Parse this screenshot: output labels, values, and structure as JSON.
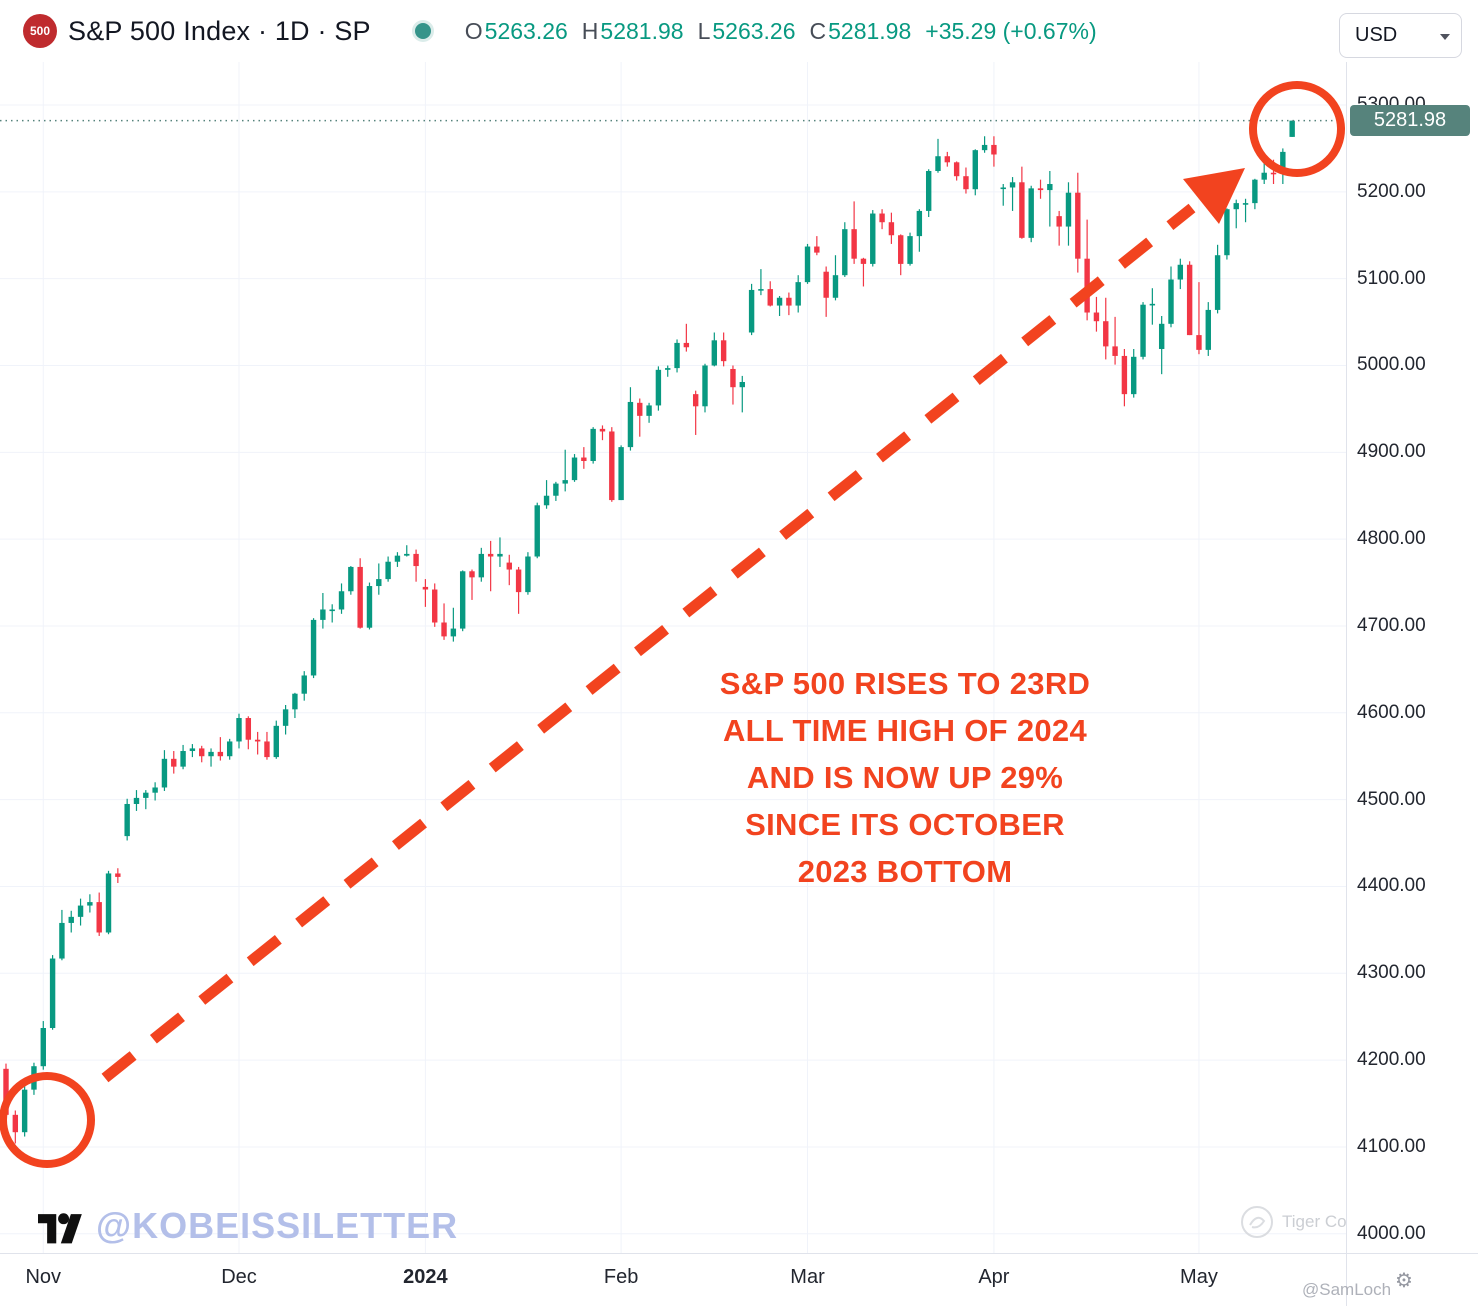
{
  "header": {
    "logo_text": "500",
    "symbol_title": "S&P 500 Index · 1D · SP",
    "ohlc": {
      "o_label": "O",
      "o": "5263.26",
      "h_label": "H",
      "h": "5281.98",
      "l_label": "L",
      "l": "5263.26",
      "c_label": "C",
      "c": "5281.98",
      "change": "+35.29 (+0.67%)"
    },
    "currency_selector": "USD"
  },
  "price_axis": {
    "last_price_label": "5281.98"
  },
  "annotations": {
    "callout_text": "S&P 500 RISES TO 23RD\nALL TIME HIGH OF 2024\nAND IS NOW UP 29%\nSINCE ITS OCTOBER\n2023 BOTTOM"
  },
  "watermarks": {
    "handle": "@KOBEISSILETTER",
    "community": "Tiger Community",
    "corner_handle": "@SamLoch"
  },
  "colors": {
    "up": "#089981",
    "down": "#f23645",
    "badge": "#56837c",
    "annotation": "#f2431f",
    "grid": "#f0f3fa",
    "axis_text": "#22262f"
  },
  "chart_data": {
    "type": "candlestick",
    "title": "S&P 500 Index",
    "timeframe": "1D",
    "exchange": "SP",
    "currency": "USD",
    "last_price": 5281.98,
    "last_ohlc": {
      "open": 5263.26,
      "high": 5281.98,
      "low": 5263.26,
      "close": 5281.98,
      "change": 35.29,
      "change_pct": 0.67
    },
    "y_ticks": [
      4000,
      4100,
      4200,
      4300,
      4400,
      4500,
      4600,
      4700,
      4800,
      4900,
      5000,
      5100,
      5200,
      5300
    ],
    "y_range_visible": [
      3981,
      5350
    ],
    "x_ticks": [
      {
        "label": "Nov",
        "index": 4
      },
      {
        "label": "Dec",
        "index": 25
      },
      {
        "label": "2024",
        "index": 45,
        "bold": true
      },
      {
        "label": "Feb",
        "index": 66
      },
      {
        "label": "Mar",
        "index": 86
      },
      {
        "label": "Apr",
        "index": 106
      },
      {
        "label": "May",
        "index": 128
      }
    ],
    "legend": "O H L C last-change shown in header",
    "candles": [
      [
        4190,
        4196,
        4128,
        4137
      ],
      [
        4137,
        4142,
        4104,
        4117
      ],
      [
        4117,
        4172,
        4112,
        4166
      ],
      [
        4166,
        4197,
        4160,
        4193
      ],
      [
        4193,
        4245,
        4189,
        4237
      ],
      [
        4237,
        4321,
        4235,
        4317
      ],
      [
        4317,
        4373,
        4315,
        4358
      ],
      [
        4358,
        4372,
        4347,
        4365
      ],
      [
        4365,
        4386,
        4355,
        4378
      ],
      [
        4378,
        4391,
        4370,
        4382
      ],
      [
        4382,
        4393,
        4343,
        4347
      ],
      [
        4347,
        4418,
        4345,
        4415
      ],
      [
        4415,
        4421,
        4404,
        4411
      ],
      [
        4458,
        4501,
        4453,
        4495
      ],
      [
        4495,
        4511,
        4487,
        4502
      ],
      [
        4502,
        4511,
        4489,
        4508
      ],
      [
        4508,
        4520,
        4499,
        4514
      ],
      [
        4514,
        4557,
        4510,
        4547
      ],
      [
        4547,
        4556,
        4530,
        4538
      ],
      [
        4538,
        4563,
        4535,
        4556
      ],
      [
        4556,
        4564,
        4549,
        4559
      ],
      [
        4559,
        4562,
        4543,
        4550
      ],
      [
        4550,
        4559,
        4538,
        4555
      ],
      [
        4555,
        4572,
        4545,
        4550
      ],
      [
        4550,
        4570,
        4546,
        4567
      ],
      [
        4567,
        4599,
        4559,
        4594
      ],
      [
        4594,
        4596,
        4558,
        4569
      ],
      [
        4569,
        4578,
        4552,
        4567
      ],
      [
        4567,
        4578,
        4546,
        4549
      ],
      [
        4549,
        4591,
        4547,
        4585
      ],
      [
        4585,
        4609,
        4575,
        4604
      ],
      [
        4604,
        4623,
        4594,
        4622
      ],
      [
        4622,
        4648,
        4614,
        4643
      ],
      [
        4643,
        4709,
        4640,
        4707
      ],
      [
        4707,
        4738,
        4697,
        4719
      ],
      [
        4719,
        4725,
        4704,
        4719
      ],
      [
        4719,
        4749,
        4714,
        4740
      ],
      [
        4740,
        4769,
        4736,
        4768
      ],
      [
        4768,
        4778,
        4697,
        4698
      ],
      [
        4698,
        4750,
        4696,
        4746
      ],
      [
        4746,
        4772,
        4736,
        4754
      ],
      [
        4754,
        4780,
        4751,
        4774
      ],
      [
        4774,
        4785,
        4768,
        4781
      ],
      [
        4781,
        4793,
        4780,
        4783
      ],
      [
        4783,
        4788,
        4751,
        4769
      ],
      [
        4745,
        4754,
        4722,
        4742
      ],
      [
        4742,
        4749,
        4699,
        4704
      ],
      [
        4704,
        4726,
        4684,
        4688
      ],
      [
        4688,
        4721,
        4682,
        4697
      ],
      [
        4697,
        4764,
        4694,
        4763
      ],
      [
        4763,
        4765,
        4730,
        4756
      ],
      [
        4756,
        4790,
        4751,
        4783
      ],
      [
        4783,
        4798,
        4740,
        4780
      ],
      [
        4780,
        4802,
        4768,
        4783
      ],
      [
        4773,
        4782,
        4747,
        4765
      ],
      [
        4765,
        4768,
        4714,
        4739
      ],
      [
        4739,
        4785,
        4736,
        4780
      ],
      [
        4780,
        4842,
        4778,
        4839
      ],
      [
        4839,
        4868,
        4835,
        4850
      ],
      [
        4850,
        4866,
        4844,
        4864
      ],
      [
        4864,
        4903,
        4855,
        4868
      ],
      [
        4868,
        4898,
        4866,
        4894
      ],
      [
        4894,
        4906,
        4881,
        4890
      ],
      [
        4890,
        4929,
        4887,
        4927
      ],
      [
        4927,
        4931,
        4914,
        4924
      ],
      [
        4924,
        4929,
        4843,
        4845
      ],
      [
        4845,
        4908,
        4845,
        4906
      ],
      [
        4906,
        4975,
        4902,
        4958
      ],
      [
        4957,
        4962,
        4918,
        4942
      ],
      [
        4942,
        4957,
        4934,
        4954
      ],
      [
        4954,
        4999,
        4948,
        4995
      ],
      [
        4995,
        5000,
        4987,
        4997
      ],
      [
        4997,
        5030,
        4992,
        5026
      ],
      [
        5026,
        5048,
        5016,
        5021
      ],
      [
        4967,
        4971,
        4920,
        4953
      ],
      [
        4953,
        5002,
        4946,
        5000
      ],
      [
        5000,
        5038,
        4999,
        5029
      ],
      [
        5029,
        5038,
        4999,
        5005
      ],
      [
        4996,
        5000,
        4955,
        4975
      ],
      [
        4975,
        4988,
        4946,
        4981
      ],
      [
        5038,
        5094,
        5035,
        5087
      ],
      [
        5087,
        5111,
        5081,
        5088
      ],
      [
        5088,
        5097,
        5068,
        5069
      ],
      [
        5069,
        5080,
        5057,
        5078
      ],
      [
        5078,
        5084,
        5058,
        5069
      ],
      [
        5069,
        5104,
        5061,
        5096
      ],
      [
        5096,
        5140,
        5094,
        5137
      ],
      [
        5137,
        5149,
        5127,
        5130
      ],
      [
        5108,
        5114,
        5056,
        5078
      ],
      [
        5078,
        5127,
        5075,
        5104
      ],
      [
        5104,
        5165,
        5102,
        5157
      ],
      [
        5157,
        5189,
        5117,
        5123
      ],
      [
        5123,
        5124,
        5091,
        5117
      ],
      [
        5117,
        5179,
        5114,
        5175
      ],
      [
        5175,
        5180,
        5157,
        5165
      ],
      [
        5165,
        5176,
        5140,
        5150
      ],
      [
        5150,
        5151,
        5104,
        5117
      ],
      [
        5117,
        5153,
        5115,
        5149
      ],
      [
        5149,
        5180,
        5131,
        5178
      ],
      [
        5178,
        5226,
        5171,
        5224
      ],
      [
        5224,
        5261,
        5222,
        5241
      ],
      [
        5241,
        5246,
        5229,
        5234
      ],
      [
        5234,
        5235,
        5213,
        5218
      ],
      [
        5218,
        5228,
        5198,
        5203
      ],
      [
        5203,
        5249,
        5196,
        5248
      ],
      [
        5248,
        5264,
        5245,
        5254
      ],
      [
        5254,
        5264,
        5229,
        5243
      ],
      [
        5204,
        5209,
        5184,
        5205
      ],
      [
        5205,
        5217,
        5178,
        5211
      ],
      [
        5211,
        5229,
        5146,
        5147
      ],
      [
        5147,
        5207,
        5142,
        5204
      ],
      [
        5204,
        5214,
        5192,
        5202
      ],
      [
        5202,
        5224,
        5160,
        5209
      ],
      [
        5172,
        5178,
        5138,
        5160
      ],
      [
        5160,
        5211,
        5138,
        5199
      ],
      [
        5199,
        5222,
        5107,
        5123
      ],
      [
        5123,
        5168,
        5052,
        5061
      ],
      [
        5061,
        5079,
        5039,
        5051
      ],
      [
        5051,
        5078,
        5007,
        5022
      ],
      [
        5022,
        5056,
        5001,
        5011
      ],
      [
        5011,
        5019,
        4953,
        4967
      ],
      [
        4967,
        5019,
        4963,
        5010
      ],
      [
        5010,
        5073,
        5007,
        5070
      ],
      [
        5070,
        5089,
        5047,
        5071
      ],
      [
        5019,
        5057,
        4990,
        5048
      ],
      [
        5048,
        5114,
        5044,
        5099
      ],
      [
        5099,
        5123,
        5088,
        5116
      ],
      [
        5116,
        5120,
        5035,
        5035
      ],
      [
        5035,
        5096,
        5013,
        5018
      ],
      [
        5018,
        5073,
        5011,
        5064
      ],
      [
        5064,
        5139,
        5060,
        5127
      ],
      [
        5127,
        5181,
        5122,
        5180
      ],
      [
        5180,
        5191,
        5158,
        5187
      ],
      [
        5187,
        5192,
        5165,
        5187
      ],
      [
        5187,
        5215,
        5180,
        5214
      ],
      [
        5214,
        5239,
        5209,
        5222
      ],
      [
        5222,
        5237,
        5209,
        5221
      ],
      [
        5221,
        5250,
        5209,
        5246
      ],
      [
        5263.26,
        5281.98,
        5263.26,
        5281.98
      ]
    ]
  }
}
